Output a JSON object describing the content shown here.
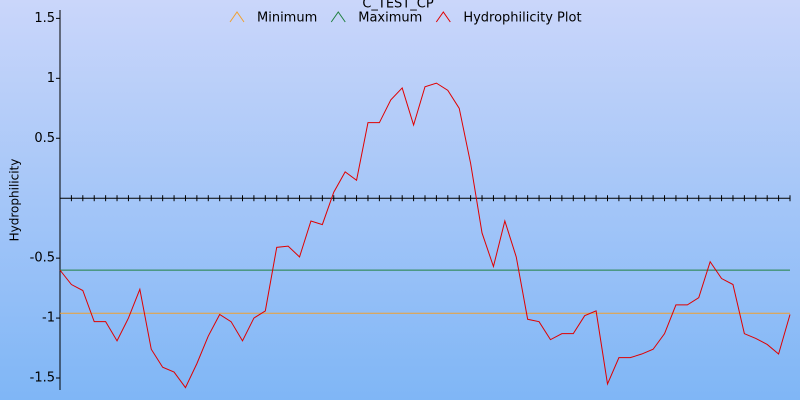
{
  "chart_data": {
    "type": "line",
    "title": "C_TEST_CP",
    "y_label": "Hydrophilicity",
    "ylim": [
      -1.6,
      1.57
    ],
    "yticks": [
      1.5,
      1,
      0.5,
      -0.5,
      -1,
      -1.5
    ],
    "series": [
      {
        "name": "Minimum",
        "color": "#f0a030",
        "value": -0.96
      },
      {
        "name": "Maximum",
        "color": "#208040",
        "value": -0.6
      },
      {
        "name": "Hydrophilicity Plot",
        "color": "#e00000",
        "values": [
          -0.6,
          -0.72,
          -0.77,
          -1.03,
          -1.03,
          -1.19,
          -1.0,
          -0.76,
          -1.26,
          -1.41,
          -1.45,
          -1.58,
          -1.38,
          -1.15,
          -0.97,
          -1.03,
          -1.19,
          -1.0,
          -0.94,
          -0.41,
          -0.4,
          -0.49,
          -0.19,
          -0.22,
          0.05,
          0.22,
          0.15,
          0.63,
          0.63,
          0.82,
          0.92,
          0.61,
          0.93,
          0.96,
          0.9,
          0.75,
          0.29,
          -0.29,
          -0.57,
          -0.19,
          -0.49,
          -1.01,
          -1.03,
          -1.18,
          -1.13,
          -1.13,
          -0.98,
          -0.94,
          -1.55,
          -1.33,
          -1.33,
          -1.3,
          -1.26,
          -1.13,
          -0.89,
          -0.89,
          -0.83,
          -0.53,
          -0.67,
          -0.72,
          -1.13,
          -1.17,
          -1.22,
          -1.3,
          -0.97
        ]
      }
    ]
  }
}
